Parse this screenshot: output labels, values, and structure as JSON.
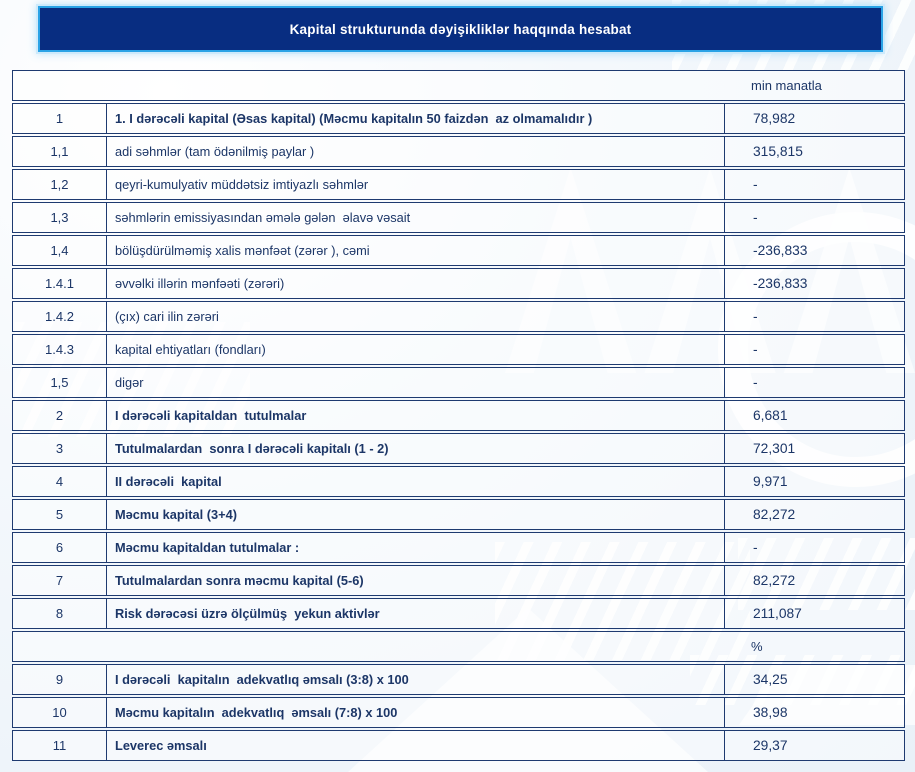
{
  "header": {
    "title": "Kapital strukturunda dəyişikliklər haqqında hesabat"
  },
  "colors": {
    "title_bar_bg": "#082d81",
    "title_bar_border": "#2aa3e6",
    "table_border": "#1e3a70",
    "text": "#1c3667",
    "page_bg": "#eef4f9"
  },
  "table": {
    "rows": [
      {
        "kind": "merged",
        "name": "unit-row",
        "label": "min manatla"
      },
      {
        "kind": "data",
        "num": "1",
        "desc": "1. I dərəcəli kapital (Əsas kapital) (Məcmu kapitalın 50 faizdən  az olmamalıdır )",
        "value": "78,982",
        "bold": true
      },
      {
        "kind": "data",
        "num": "1,1",
        "desc": "adi səhmlər (tam ödənilmiş paylar )",
        "value": "315,815",
        "bold": false
      },
      {
        "kind": "data",
        "num": "1,2",
        "desc": "qeyri-kumulyativ müddətsiz imtiyazlı səhmlər",
        "value": "-",
        "bold": false
      },
      {
        "kind": "data",
        "num": "1,3",
        "desc": "səhmlərin emissiyasından əmələ gələn  əlavə vəsait",
        "value": "-",
        "bold": false
      },
      {
        "kind": "data",
        "num": "1,4",
        "desc": "bölüşdürülməmiş xalis mənfəət (zərər ), cəmi",
        "value": "-236,833",
        "bold": false
      },
      {
        "kind": "data",
        "num": "1.4.1",
        "desc": "əvvəlki illərin mənfəəti (zərəri)",
        "value": "-236,833",
        "bold": false
      },
      {
        "kind": "data",
        "num": "1.4.2",
        "desc": "(çıx) cari ilin zərəri",
        "value": "-",
        "bold": false
      },
      {
        "kind": "data",
        "num": "1.4.3",
        "desc": "kapital ehtiyatları (fondları)",
        "value": "-",
        "bold": false
      },
      {
        "kind": "data",
        "num": "1,5",
        "desc": "digər",
        "value": "-",
        "bold": false
      },
      {
        "kind": "data",
        "num": "2",
        "desc": "I dərəcəli kapitaldan  tutulmalar",
        "value": "6,681",
        "bold": true
      },
      {
        "kind": "data",
        "num": "3",
        "desc": "Tutulmalardan  sonra I dərəcəli kapitalı (1 - 2)",
        "value": "72,301",
        "bold": true
      },
      {
        "kind": "data",
        "num": "4",
        "desc": "II dərəcəli  kapital",
        "value": "9,971",
        "bold": true
      },
      {
        "kind": "data",
        "num": "5",
        "desc": "Məcmu kapital (3+4)",
        "value": "82,272",
        "bold": true
      },
      {
        "kind": "data",
        "num": "6",
        "desc": "Məcmu kapitaldan tutulmalar :",
        "value": "-",
        "bold": true
      },
      {
        "kind": "data",
        "num": "7",
        "desc": "Tutulmalardan sonra məcmu kapital (5-6)",
        "value": "82,272",
        "bold": true
      },
      {
        "kind": "data",
        "num": "8",
        "desc": "Risk dərəcəsi üzrə ölçülmüş  yekun aktivlər",
        "value": "211,087",
        "bold": true
      },
      {
        "kind": "merged",
        "name": "percent-row",
        "label": "%"
      },
      {
        "kind": "data",
        "num": "9",
        "desc": "I dərəcəli  kapitalın  adekvatlıq əmsalı (3:8) x 100",
        "value": "34,25",
        "bold": true
      },
      {
        "kind": "data",
        "num": "10",
        "desc": "Məcmu kapitalın  adekvatlıq  əmsalı (7:8) x 100",
        "value": "38,98",
        "bold": true
      },
      {
        "kind": "data",
        "num": "11",
        "desc": "Leverec əmsalı",
        "value": "29,37",
        "bold": true
      }
    ]
  }
}
